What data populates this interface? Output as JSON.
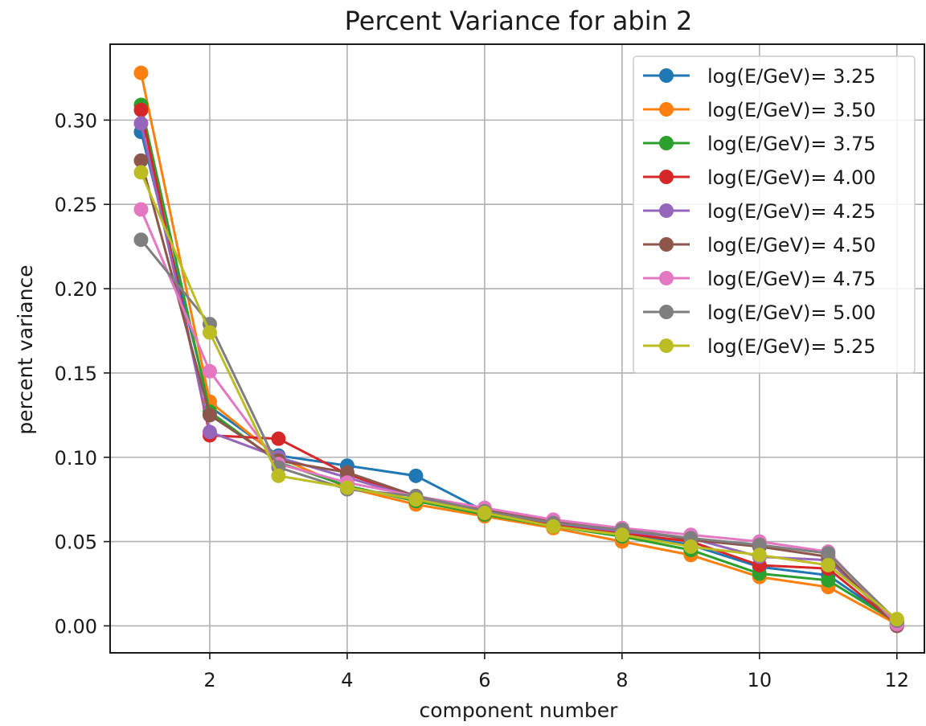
{
  "chart_data": {
    "type": "line",
    "title": "Percent Variance for abin 2",
    "xlabel": "component number",
    "ylabel": "percent variance",
    "xlim": [
      0.55,
      12.4
    ],
    "ylim": [
      -0.016,
      0.345
    ],
    "xticks": [
      2,
      4,
      6,
      8,
      10,
      12
    ],
    "yticks": [
      0.0,
      0.05,
      0.1,
      0.15,
      0.2,
      0.25,
      0.3
    ],
    "xtick_labels": [
      "2",
      "4",
      "6",
      "8",
      "10",
      "12"
    ],
    "ytick_labels": [
      "0.00",
      "0.05",
      "0.10",
      "0.15",
      "0.20",
      "0.25",
      "0.30"
    ],
    "grid": true,
    "legend_position": "upper right",
    "x": [
      1,
      2,
      3,
      4,
      5,
      6,
      7,
      8,
      9,
      10,
      11,
      12
    ],
    "series": [
      {
        "name": "log(E/GeV)= 3.25",
        "color": "#1f77b4",
        "values": [
          0.293,
          0.13,
          0.101,
          0.095,
          0.089,
          0.068,
          0.06,
          0.055,
          0.048,
          0.035,
          0.03,
          0.002
        ]
      },
      {
        "name": "log(E/GeV)= 3.50",
        "color": "#ff7f0e",
        "values": [
          0.328,
          0.133,
          0.1,
          0.082,
          0.072,
          0.065,
          0.058,
          0.05,
          0.042,
          0.029,
          0.023,
          0.001
        ]
      },
      {
        "name": "log(E/GeV)= 3.75",
        "color": "#2ca02c",
        "values": [
          0.309,
          0.127,
          0.097,
          0.083,
          0.074,
          0.066,
          0.059,
          0.053,
          0.045,
          0.031,
          0.027,
          0.002
        ]
      },
      {
        "name": "log(E/GeV)= 4.00",
        "color": "#d62728",
        "values": [
          0.306,
          0.113,
          0.111,
          0.09,
          0.076,
          0.067,
          0.06,
          0.055,
          0.05,
          0.036,
          0.034,
          0.001
        ]
      },
      {
        "name": "log(E/GeV)= 4.25",
        "color": "#9467bd",
        "values": [
          0.298,
          0.115,
          0.1,
          0.088,
          0.076,
          0.068,
          0.061,
          0.056,
          0.052,
          0.041,
          0.039,
          0.001
        ]
      },
      {
        "name": "log(E/GeV)= 4.50",
        "color": "#8c564b",
        "values": [
          0.276,
          0.125,
          0.098,
          0.091,
          0.077,
          0.069,
          0.062,
          0.058,
          0.051,
          0.047,
          0.041,
          0.0
        ]
      },
      {
        "name": "log(E/GeV)= 4.75",
        "color": "#e377c2",
        "values": [
          0.247,
          0.151,
          0.096,
          0.085,
          0.077,
          0.07,
          0.063,
          0.058,
          0.054,
          0.05,
          0.044,
          0.001
        ]
      },
      {
        "name": "log(E/GeV)= 5.00",
        "color": "#7f7f7f",
        "values": [
          0.229,
          0.179,
          0.094,
          0.081,
          0.077,
          0.068,
          0.061,
          0.057,
          0.052,
          0.048,
          0.043,
          0.003
        ]
      },
      {
        "name": "log(E/GeV)= 5.25",
        "color": "#bcbd22",
        "values": [
          0.269,
          0.174,
          0.089,
          0.082,
          0.075,
          0.067,
          0.059,
          0.054,
          0.047,
          0.042,
          0.036,
          0.004
        ]
      }
    ]
  }
}
